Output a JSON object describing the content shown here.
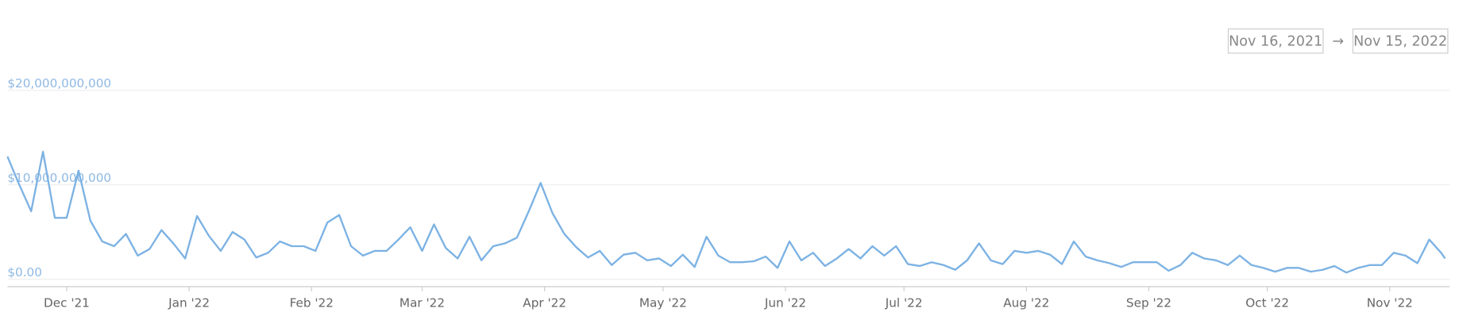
{
  "date_range": {
    "start": "Nov 16, 2021",
    "separator": "→",
    "end": "Nov 15, 2022"
  },
  "chart_data": {
    "type": "line",
    "color": "#7cb2e3",
    "grid": true,
    "x": [
      "2021-11-16",
      "2021-11-19",
      "2021-11-22",
      "2021-11-25",
      "2021-11-28",
      "2021-12-01",
      "2021-12-04",
      "2021-12-07",
      "2021-12-10",
      "2021-12-13",
      "2021-12-16",
      "2021-12-19",
      "2021-12-22",
      "2021-12-25",
      "2021-12-28",
      "2021-12-31",
      "2022-01-03",
      "2022-01-06",
      "2022-01-09",
      "2022-01-12",
      "2022-01-15",
      "2022-01-18",
      "2022-01-21",
      "2022-01-24",
      "2022-01-27",
      "2022-01-30",
      "2022-02-02",
      "2022-02-05",
      "2022-02-08",
      "2022-02-11",
      "2022-02-14",
      "2022-02-17",
      "2022-02-20",
      "2022-02-23",
      "2022-02-26",
      "2022-03-01",
      "2022-03-04",
      "2022-03-07",
      "2022-03-10",
      "2022-03-13",
      "2022-03-16",
      "2022-03-19",
      "2022-03-22",
      "2022-03-25",
      "2022-03-28",
      "2022-03-31",
      "2022-04-03",
      "2022-04-06",
      "2022-04-09",
      "2022-04-12",
      "2022-04-15",
      "2022-04-18",
      "2022-04-21",
      "2022-04-24",
      "2022-04-27",
      "2022-04-30",
      "2022-05-03",
      "2022-05-06",
      "2022-05-09",
      "2022-05-12",
      "2022-05-15",
      "2022-05-18",
      "2022-05-21",
      "2022-05-24",
      "2022-05-27",
      "2022-05-30",
      "2022-06-02",
      "2022-06-05",
      "2022-06-08",
      "2022-06-11",
      "2022-06-14",
      "2022-06-17",
      "2022-06-20",
      "2022-06-23",
      "2022-06-26",
      "2022-06-29",
      "2022-07-02",
      "2022-07-05",
      "2022-07-08",
      "2022-07-11",
      "2022-07-14",
      "2022-07-17",
      "2022-07-20",
      "2022-07-23",
      "2022-07-26",
      "2022-07-29",
      "2022-08-01",
      "2022-08-04",
      "2022-08-07",
      "2022-08-10",
      "2022-08-13",
      "2022-08-16",
      "2022-08-19",
      "2022-08-22",
      "2022-08-25",
      "2022-08-28",
      "2022-08-31",
      "2022-09-03",
      "2022-09-06",
      "2022-09-09",
      "2022-09-12",
      "2022-09-15",
      "2022-09-18",
      "2022-09-21",
      "2022-09-24",
      "2022-09-27",
      "2022-09-30",
      "2022-10-03",
      "2022-10-06",
      "2022-10-09",
      "2022-10-12",
      "2022-10-15",
      "2022-10-18",
      "2022-10-21",
      "2022-10-24",
      "2022-10-27",
      "2022-10-30",
      "2022-11-02",
      "2022-11-05",
      "2022-11-08",
      "2022-11-11",
      "2022-11-14",
      "2022-11-15"
    ],
    "values": [
      13000000000,
      10000000000,
      7200000000,
      13500000000,
      6500000000,
      6500000000,
      11500000000,
      6200000000,
      4000000000,
      3500000000,
      4800000000,
      2500000000,
      3200000000,
      5200000000,
      3800000000,
      2200000000,
      6700000000,
      4600000000,
      3000000000,
      5000000000,
      4200000000,
      2300000000,
      2800000000,
      4000000000,
      3500000000,
      3500000000,
      3000000000,
      6000000000,
      6800000000,
      3500000000,
      2500000000,
      3000000000,
      3000000000,
      4200000000,
      5500000000,
      3000000000,
      5800000000,
      3300000000,
      2200000000,
      4500000000,
      2000000000,
      3500000000,
      3800000000,
      4400000000,
      7200000000,
      10200000000,
      7000000000,
      4800000000,
      3400000000,
      2300000000,
      3000000000,
      1500000000,
      2600000000,
      2800000000,
      2000000000,
      2200000000,
      1400000000,
      2600000000,
      1300000000,
      4500000000,
      2500000000,
      1800000000,
      1800000000,
      1900000000,
      2400000000,
      1200000000,
      4000000000,
      2000000000,
      2800000000,
      1400000000,
      2200000000,
      3200000000,
      2200000000,
      3500000000,
      2500000000,
      3500000000,
      1600000000,
      1400000000,
      1800000000,
      1500000000,
      1000000000,
      2000000000,
      3800000000,
      2000000000,
      1600000000,
      3000000000,
      2800000000,
      3000000000,
      2600000000,
      1600000000,
      4000000000,
      2400000000,
      2000000000,
      1700000000,
      1300000000,
      1800000000,
      1800000000,
      1800000000,
      900000000,
      1500000000,
      2800000000,
      2200000000,
      2000000000,
      1500000000,
      2500000000,
      1500000000,
      1200000000,
      800000000,
      1200000000,
      1200000000,
      800000000,
      1000000000,
      1400000000,
      700000000,
      1200000000,
      1500000000,
      1500000000,
      2800000000,
      2500000000,
      1700000000,
      4200000000,
      2800000000,
      2200000000
    ],
    "xlim": [
      "2021-11-16",
      "2022-11-15"
    ],
    "xticks": [
      {
        "value": "2021-12-01",
        "label": "Dec '21"
      },
      {
        "value": "2022-01-01",
        "label": "Jan '22"
      },
      {
        "value": "2022-02-01",
        "label": "Feb '22"
      },
      {
        "value": "2022-03-01",
        "label": "Mar '22"
      },
      {
        "value": "2022-04-01",
        "label": "Apr '22"
      },
      {
        "value": "2022-05-01",
        "label": "May '22"
      },
      {
        "value": "2022-06-01",
        "label": "Jun '22"
      },
      {
        "value": "2022-07-01",
        "label": "Jul '22"
      },
      {
        "value": "2022-08-01",
        "label": "Aug '22"
      },
      {
        "value": "2022-09-01",
        "label": "Sep '22"
      },
      {
        "value": "2022-10-01",
        "label": "Oct '22"
      },
      {
        "value": "2022-11-01",
        "label": "Nov '22"
      }
    ],
    "ylim": [
      0,
      20000000000
    ],
    "yticks": [
      {
        "value": 0,
        "label": "$0.00"
      },
      {
        "value": 10000000000,
        "label": "$10,000,000,000"
      },
      {
        "value": 20000000000,
        "label": "$20,000,000,000"
      }
    ]
  }
}
